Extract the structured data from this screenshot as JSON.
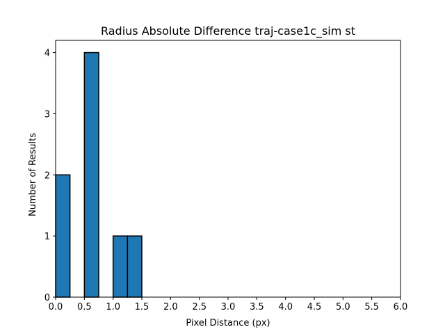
{
  "chart_data": {
    "type": "bar",
    "title": "Radius Absolute Difference traj-case1c_sim st",
    "xlabel": "Pixel Distance (px)",
    "ylabel": "Number of Results",
    "xlim": [
      0,
      6
    ],
    "ylim": [
      0,
      4.2
    ],
    "x_ticks": [
      0.0,
      0.5,
      1.0,
      1.5,
      2.0,
      2.5,
      3.0,
      3.5,
      4.0,
      4.5,
      5.0,
      5.5,
      6.0
    ],
    "x_tick_labels": [
      "0.0",
      "0.5",
      "1.0",
      "1.5",
      "2.0",
      "2.5",
      "3.0",
      "3.5",
      "4.0",
      "4.5",
      "5.0",
      "5.5",
      "6.0"
    ],
    "y_ticks": [
      0,
      1,
      2,
      3,
      4
    ],
    "y_tick_labels": [
      "0",
      "1",
      "2",
      "3",
      "4"
    ],
    "bin_edges": [
      0.0,
      0.25,
      0.5,
      0.75,
      1.0,
      1.25,
      1.5,
      1.75,
      2.0,
      2.25,
      2.5,
      2.75,
      3.0,
      3.25,
      3.5,
      3.75,
      4.0,
      4.25,
      4.5,
      4.75,
      5.0
    ],
    "values": [
      2,
      0,
      4,
      0,
      1,
      1,
      0,
      0,
      0,
      0,
      0,
      0,
      0,
      0,
      0,
      0,
      0,
      0,
      0,
      0
    ],
    "bar_color": "#1f77b4",
    "edge_color": "#000000",
    "grid": false,
    "legend": "none"
  }
}
